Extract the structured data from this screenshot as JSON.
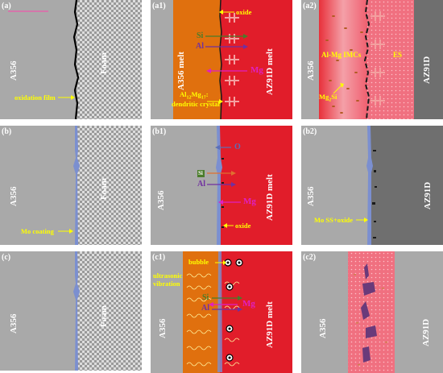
{
  "colors": {
    "gray": "#a9a9a9",
    "foam_bg": "#e0e0e0",
    "melt_orange": "#e0700e",
    "melt_red": "#e11d2a",
    "dark_gray": "#6f6f6f",
    "coating_blue": "#7b8fd0",
    "annotation_yellow": "#ffff00",
    "si_green": "#4a7c2a",
    "al_purple": "#7030a0",
    "mg_magenta": "#e020c0",
    "o_blue": "#5b6fb8"
  },
  "panels": {
    "a": {
      "label": "(a)",
      "left": "A356",
      "right": "Foam",
      "annotation": "oxidation film"
    },
    "a1": {
      "label": "(a1)",
      "left": "A356 melt",
      "right": "AZ91D melt",
      "oxide": "oxide",
      "si": "Si",
      "al": "Al",
      "mg": "Mg",
      "crystal_line1": "Al12Mg17",
      "crystal_line1_base": "Al",
      "crystal_line1_sub1": "12",
      "crystal_line1_mid": "Mg",
      "crystal_line1_sub2": "17",
      "crystal_line1_end": ":",
      "crystal_line2": "dendritic crystal"
    },
    "a2": {
      "label": "(a2)",
      "left": "A356",
      "right": "AZ91D",
      "imcs": "Al-Mg IMCs",
      "es": "ES",
      "mg2si": "Mg2Si",
      "mg2si_base": "Mg",
      "mg2si_sub": "2",
      "mg2si_end": "Si"
    },
    "b": {
      "label": "(b)",
      "left": "A356",
      "right": "Foam",
      "annotation": "Mo coating"
    },
    "b1": {
      "label": "(b1)",
      "left": "A356",
      "right": "AZ91D melt",
      "o": "O",
      "si": "Si",
      "al": "Al",
      "mg": "Mg",
      "oxide": "oxide"
    },
    "b2": {
      "label": "(b2)",
      "left": "A356",
      "right": "AZ91D",
      "annotation": "Mo SS+oxide"
    },
    "c": {
      "label": "(c)",
      "left": "A356",
      "right": "Foam"
    },
    "c1": {
      "label": "(c1)",
      "left": "A356",
      "right": "AZ91D melt",
      "bubble": "bubble",
      "ultrasonic_line1": "ultrasonic",
      "ultrasonic_line2": "vibration",
      "si": "Si",
      "al": "Al",
      "mg": "Mg"
    },
    "c2": {
      "label": "(c2)",
      "left": "A356",
      "right": "AZ91D"
    }
  }
}
